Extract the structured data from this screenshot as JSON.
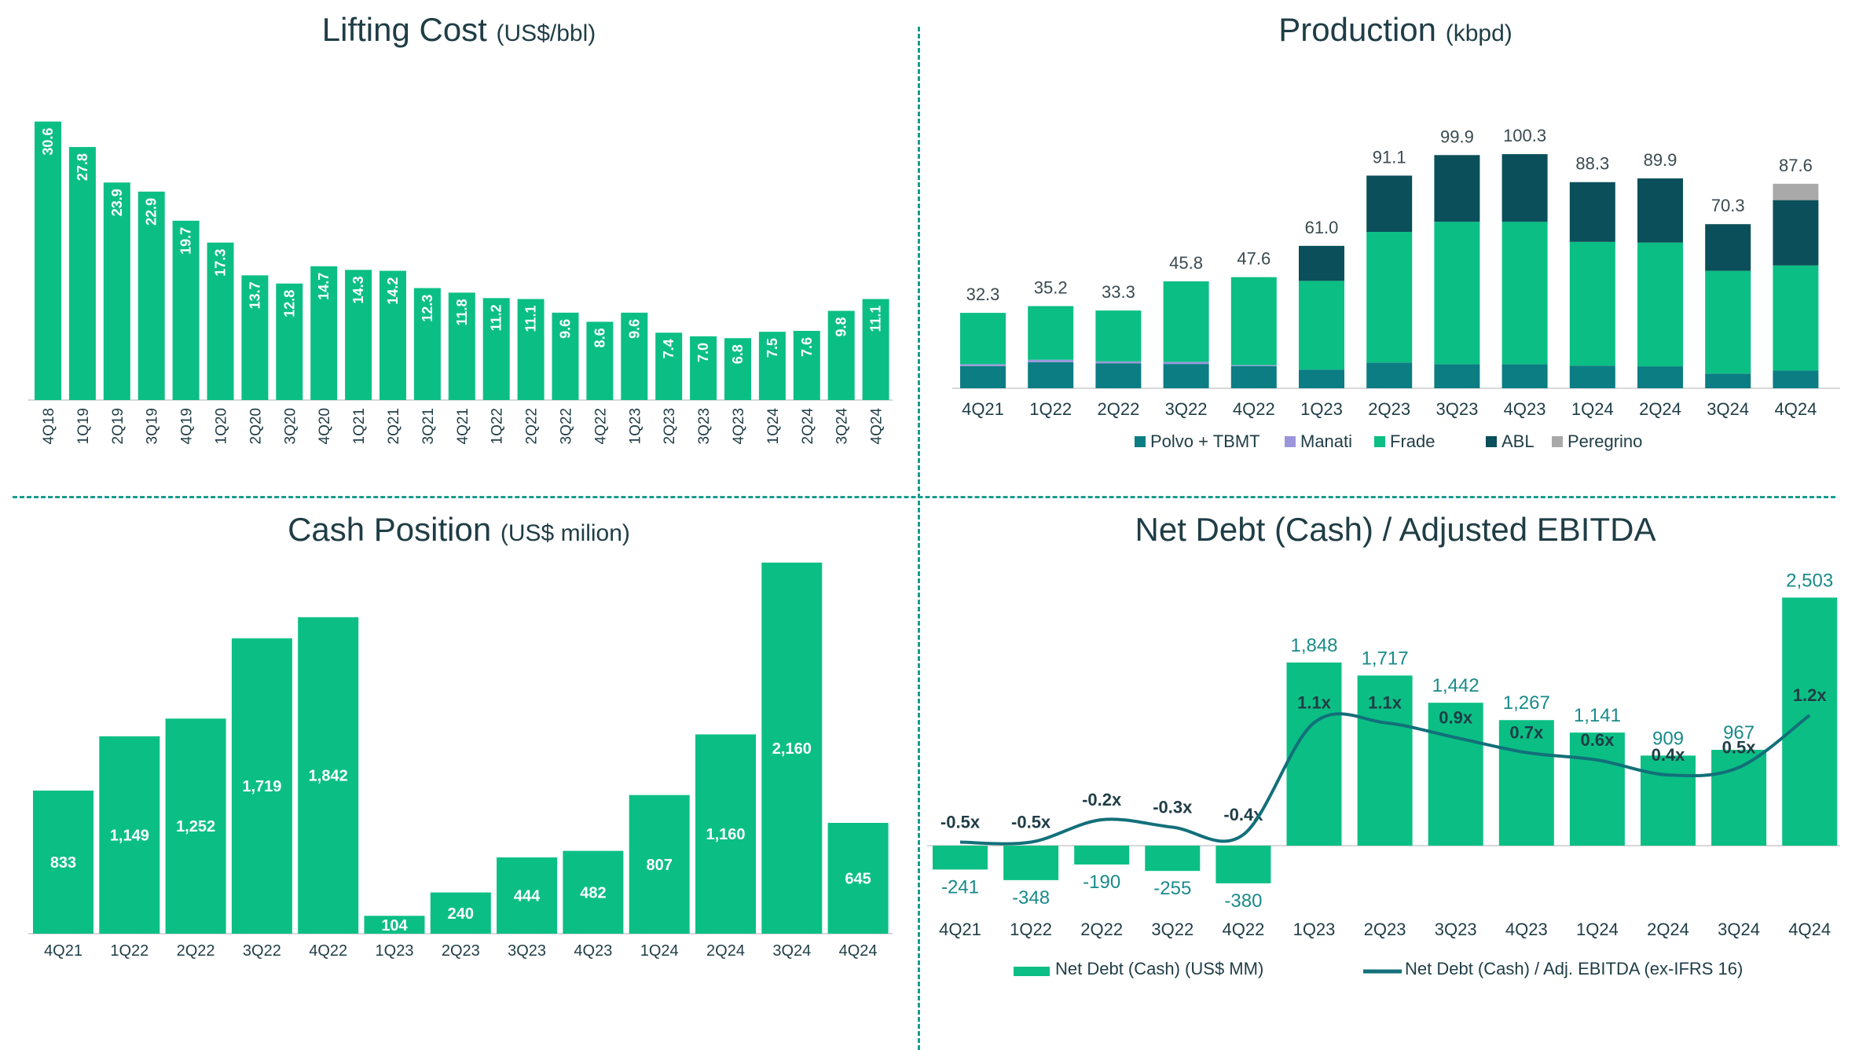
{
  "colors": {
    "green": "#0bbf84",
    "teal": "#0b7d83",
    "dark": "#0b4f5a",
    "lavender": "#9b96dc",
    "gray": "#a9a9a9",
    "line": "#12707a",
    "label_dark": "#1f3d46",
    "label_teal": "#1a8a8a"
  },
  "chart_data": [
    {
      "id": "lifting-cost",
      "type": "bar",
      "title": "Lifting Cost",
      "unit": "(US$/bbl)",
      "categories": [
        "4Q18",
        "1Q19",
        "2Q19",
        "3Q19",
        "4Q19",
        "1Q20",
        "2Q20",
        "3Q20",
        "4Q20",
        "1Q21",
        "2Q21",
        "3Q21",
        "4Q21",
        "1Q22",
        "2Q22",
        "3Q22",
        "4Q22",
        "1Q23",
        "2Q23",
        "3Q23",
        "4Q23",
        "1Q24",
        "2Q24",
        "3Q24",
        "4Q24"
      ],
      "values": [
        30.6,
        27.8,
        23.9,
        22.9,
        19.7,
        17.3,
        13.7,
        12.8,
        14.7,
        14.3,
        14.2,
        12.3,
        11.8,
        11.2,
        11.1,
        9.6,
        8.6,
        9.6,
        7.4,
        7.0,
        6.8,
        7.5,
        7.6,
        9.8,
        11.1
      ],
      "labels": [
        "30.6",
        "27.8",
        "23.9",
        "22.9",
        "19.7",
        "17.3",
        "13.7",
        "12.8",
        "14.7",
        "14.3",
        "14.2",
        "12.3",
        "11.8",
        "11.2",
        "11.1",
        "9.6",
        "8.6",
        "9.6",
        "7.4",
        "7.0",
        "6.8",
        "7.5",
        "7.6",
        "9.8",
        "11.1"
      ],
      "ylim": [
        0,
        31
      ]
    },
    {
      "id": "production",
      "type": "bar",
      "stacked": true,
      "title": "Production",
      "unit": "(kbpd)",
      "categories": [
        "4Q21",
        "1Q22",
        "2Q22",
        "3Q22",
        "4Q22",
        "1Q23",
        "2Q23",
        "3Q23",
        "4Q23",
        "1Q24",
        "2Q24",
        "3Q24",
        "4Q24"
      ],
      "series": [
        {
          "name": "Polvo + TBMT",
          "values": [
            9.5,
            11.2,
            10.7,
            10.4,
            9.5,
            8.0,
            11.0,
            10.3,
            10.3,
            9.7,
            9.4,
            6.3,
            7.6
          ]
        },
        {
          "name": "Manati",
          "values": [
            0.8,
            1.0,
            0.8,
            0.9,
            0.4,
            0,
            0,
            0,
            0,
            0,
            0,
            0,
            0
          ]
        },
        {
          "name": "Frade",
          "values": [
            22.0,
            23.0,
            21.8,
            34.5,
            37.7,
            38.0,
            56.0,
            61.0,
            61.0,
            53.0,
            53.0,
            44.0,
            45.0
          ]
        },
        {
          "name": "ABL",
          "values": [
            0,
            0,
            0,
            0,
            0,
            15.0,
            24.1,
            28.6,
            29.0,
            25.6,
            27.5,
            20.0,
            28.0
          ]
        },
        {
          "name": "Peregrino",
          "values": [
            0,
            0,
            0,
            0,
            0,
            0,
            0,
            0,
            0,
            0,
            0,
            0,
            7.0
          ]
        }
      ],
      "totals": [
        "32.3",
        "35.2",
        "33.3",
        "45.8",
        "47.6",
        "61.0",
        "91.1",
        "99.9",
        "100.3",
        "88.3",
        "89.9",
        "70.3",
        "87.6"
      ],
      "ylim": [
        0,
        120
      ]
    },
    {
      "id": "cash-position",
      "type": "bar",
      "title": "Cash Position",
      "unit": "(US$ milion)",
      "categories": [
        "4Q21",
        "1Q22",
        "2Q22",
        "3Q22",
        "4Q22",
        "1Q23",
        "2Q23",
        "3Q23",
        "4Q23",
        "1Q24",
        "2Q24",
        "3Q24",
        "4Q24"
      ],
      "values": [
        833,
        1149,
        1252,
        1719,
        1842,
        104,
        240,
        444,
        482,
        807,
        1160,
        2160,
        645
      ],
      "labels": [
        "833",
        "1,149",
        "1,252",
        "1,719",
        "1,842",
        "104",
        "240",
        "444",
        "482",
        "807",
        "1,160",
        "2,160",
        "645"
      ],
      "ylim": [
        0,
        2200
      ]
    },
    {
      "id": "net-debt",
      "type": "bar",
      "title": "Net Debt (Cash) / Adjusted EBITDA",
      "categories": [
        "4Q21",
        "1Q22",
        "2Q22",
        "3Q22",
        "4Q22",
        "1Q23",
        "2Q23",
        "3Q23",
        "4Q23",
        "1Q24",
        "2Q24",
        "3Q24",
        "4Q24"
      ],
      "series": [
        {
          "name": "Net Debt (Cash) (US$ MM)",
          "type": "bar",
          "values": [
            -241,
            -348,
            -190,
            -255,
            -380,
            1848,
            1717,
            1442,
            1267,
            1141,
            909,
            967,
            2503
          ],
          "labels": [
            "-241",
            "-348",
            "-190",
            "-255",
            "-380",
            "1,848",
            "1,717",
            "1,442",
            "1,267",
            "1,141",
            "909",
            "967",
            "2,503"
          ]
        },
        {
          "name": "Net Debt (Cash) / Adj. EBITDA (ex-IFRS 16)",
          "type": "line",
          "values": [
            -0.5,
            -0.5,
            -0.2,
            -0.3,
            -0.4,
            1.1,
            1.1,
            0.9,
            0.7,
            0.6,
            0.4,
            0.5,
            1.2
          ],
          "labels": [
            "-0.5x",
            "-0.5x",
            "-0.2x",
            "-0.3x",
            "-0.4x",
            "1.1x",
            "1.1x",
            "0.9x",
            "0.7x",
            "0.6x",
            "0.4x",
            "0.5x",
            "1.2x"
          ]
        }
      ],
      "ylim": [
        -400,
        2600
      ]
    }
  ]
}
